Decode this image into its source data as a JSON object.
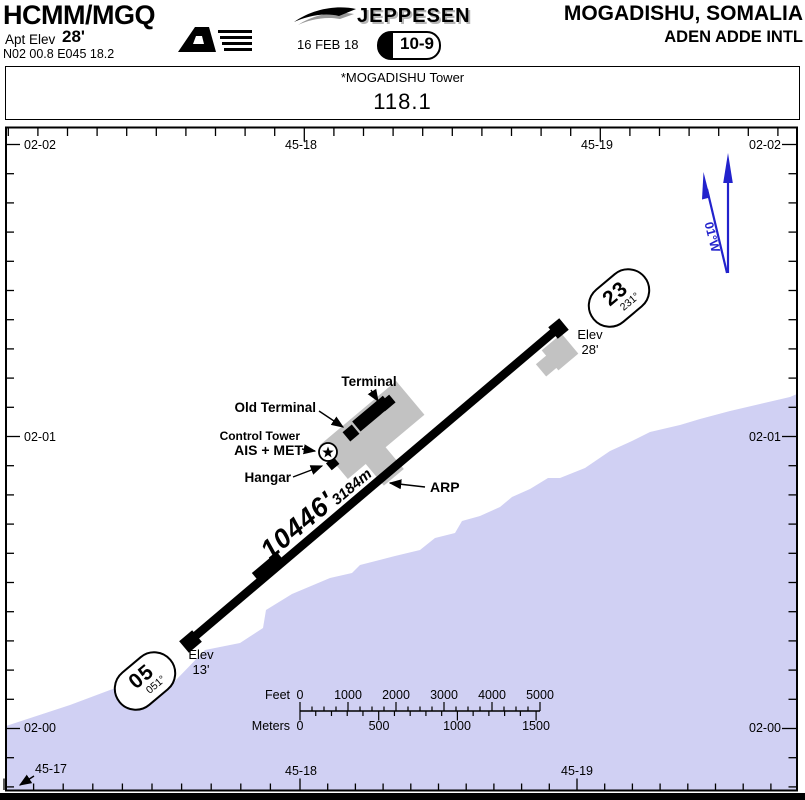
{
  "header": {
    "icao_iata": "HCMM/MGQ",
    "apt_elev_label": "Apt Elev",
    "apt_elev_value": "28'",
    "coordinates": "N02 00.8 E045 18.2",
    "brand": "JEPPESEN",
    "date": "16 FEB 18",
    "chart_index": "10-9",
    "city": "MOGADISHU, SOMALIA",
    "airport": "ADEN ADDE INTL"
  },
  "comms": {
    "facility": "*MOGADISHU Tower",
    "frequency": "118.1"
  },
  "grid": {
    "left_labels": [
      "02-02",
      "02-01",
      "02-00"
    ],
    "right_labels": [
      "02-02",
      "02-01",
      "02-00"
    ],
    "top_labels": [
      "45-18",
      "45-19"
    ],
    "bottom_labels": [
      "45-17",
      "45-18",
      "45-19"
    ]
  },
  "north": {
    "variation": "01°W"
  },
  "runway": {
    "end_23": {
      "designator": "23",
      "heading": "231°",
      "elev_label": "Elev",
      "elevation": "28'"
    },
    "end_05": {
      "designator": "05",
      "heading": "051°",
      "elev_label": "Elev",
      "elevation": "13'"
    },
    "length_ft": "10446'",
    "length_m": "3184m"
  },
  "facilities": {
    "terminal": "Terminal",
    "old_terminal": "Old Terminal",
    "control_tower": "Control Tower",
    "ais_met": "AIS + MET",
    "hangar": "Hangar",
    "arp": "ARP"
  },
  "scale": {
    "feet_label": "Feet",
    "feet_ticks": [
      "0",
      "1000",
      "2000",
      "3000",
      "4000",
      "5000"
    ],
    "meters_label": "Meters",
    "meters_ticks": [
      "0",
      "500",
      "1000",
      "1500"
    ]
  },
  "colors": {
    "water": "#d0d0f3",
    "apron": "#c2c2c2",
    "magnetic_blue": "#2222cc"
  }
}
